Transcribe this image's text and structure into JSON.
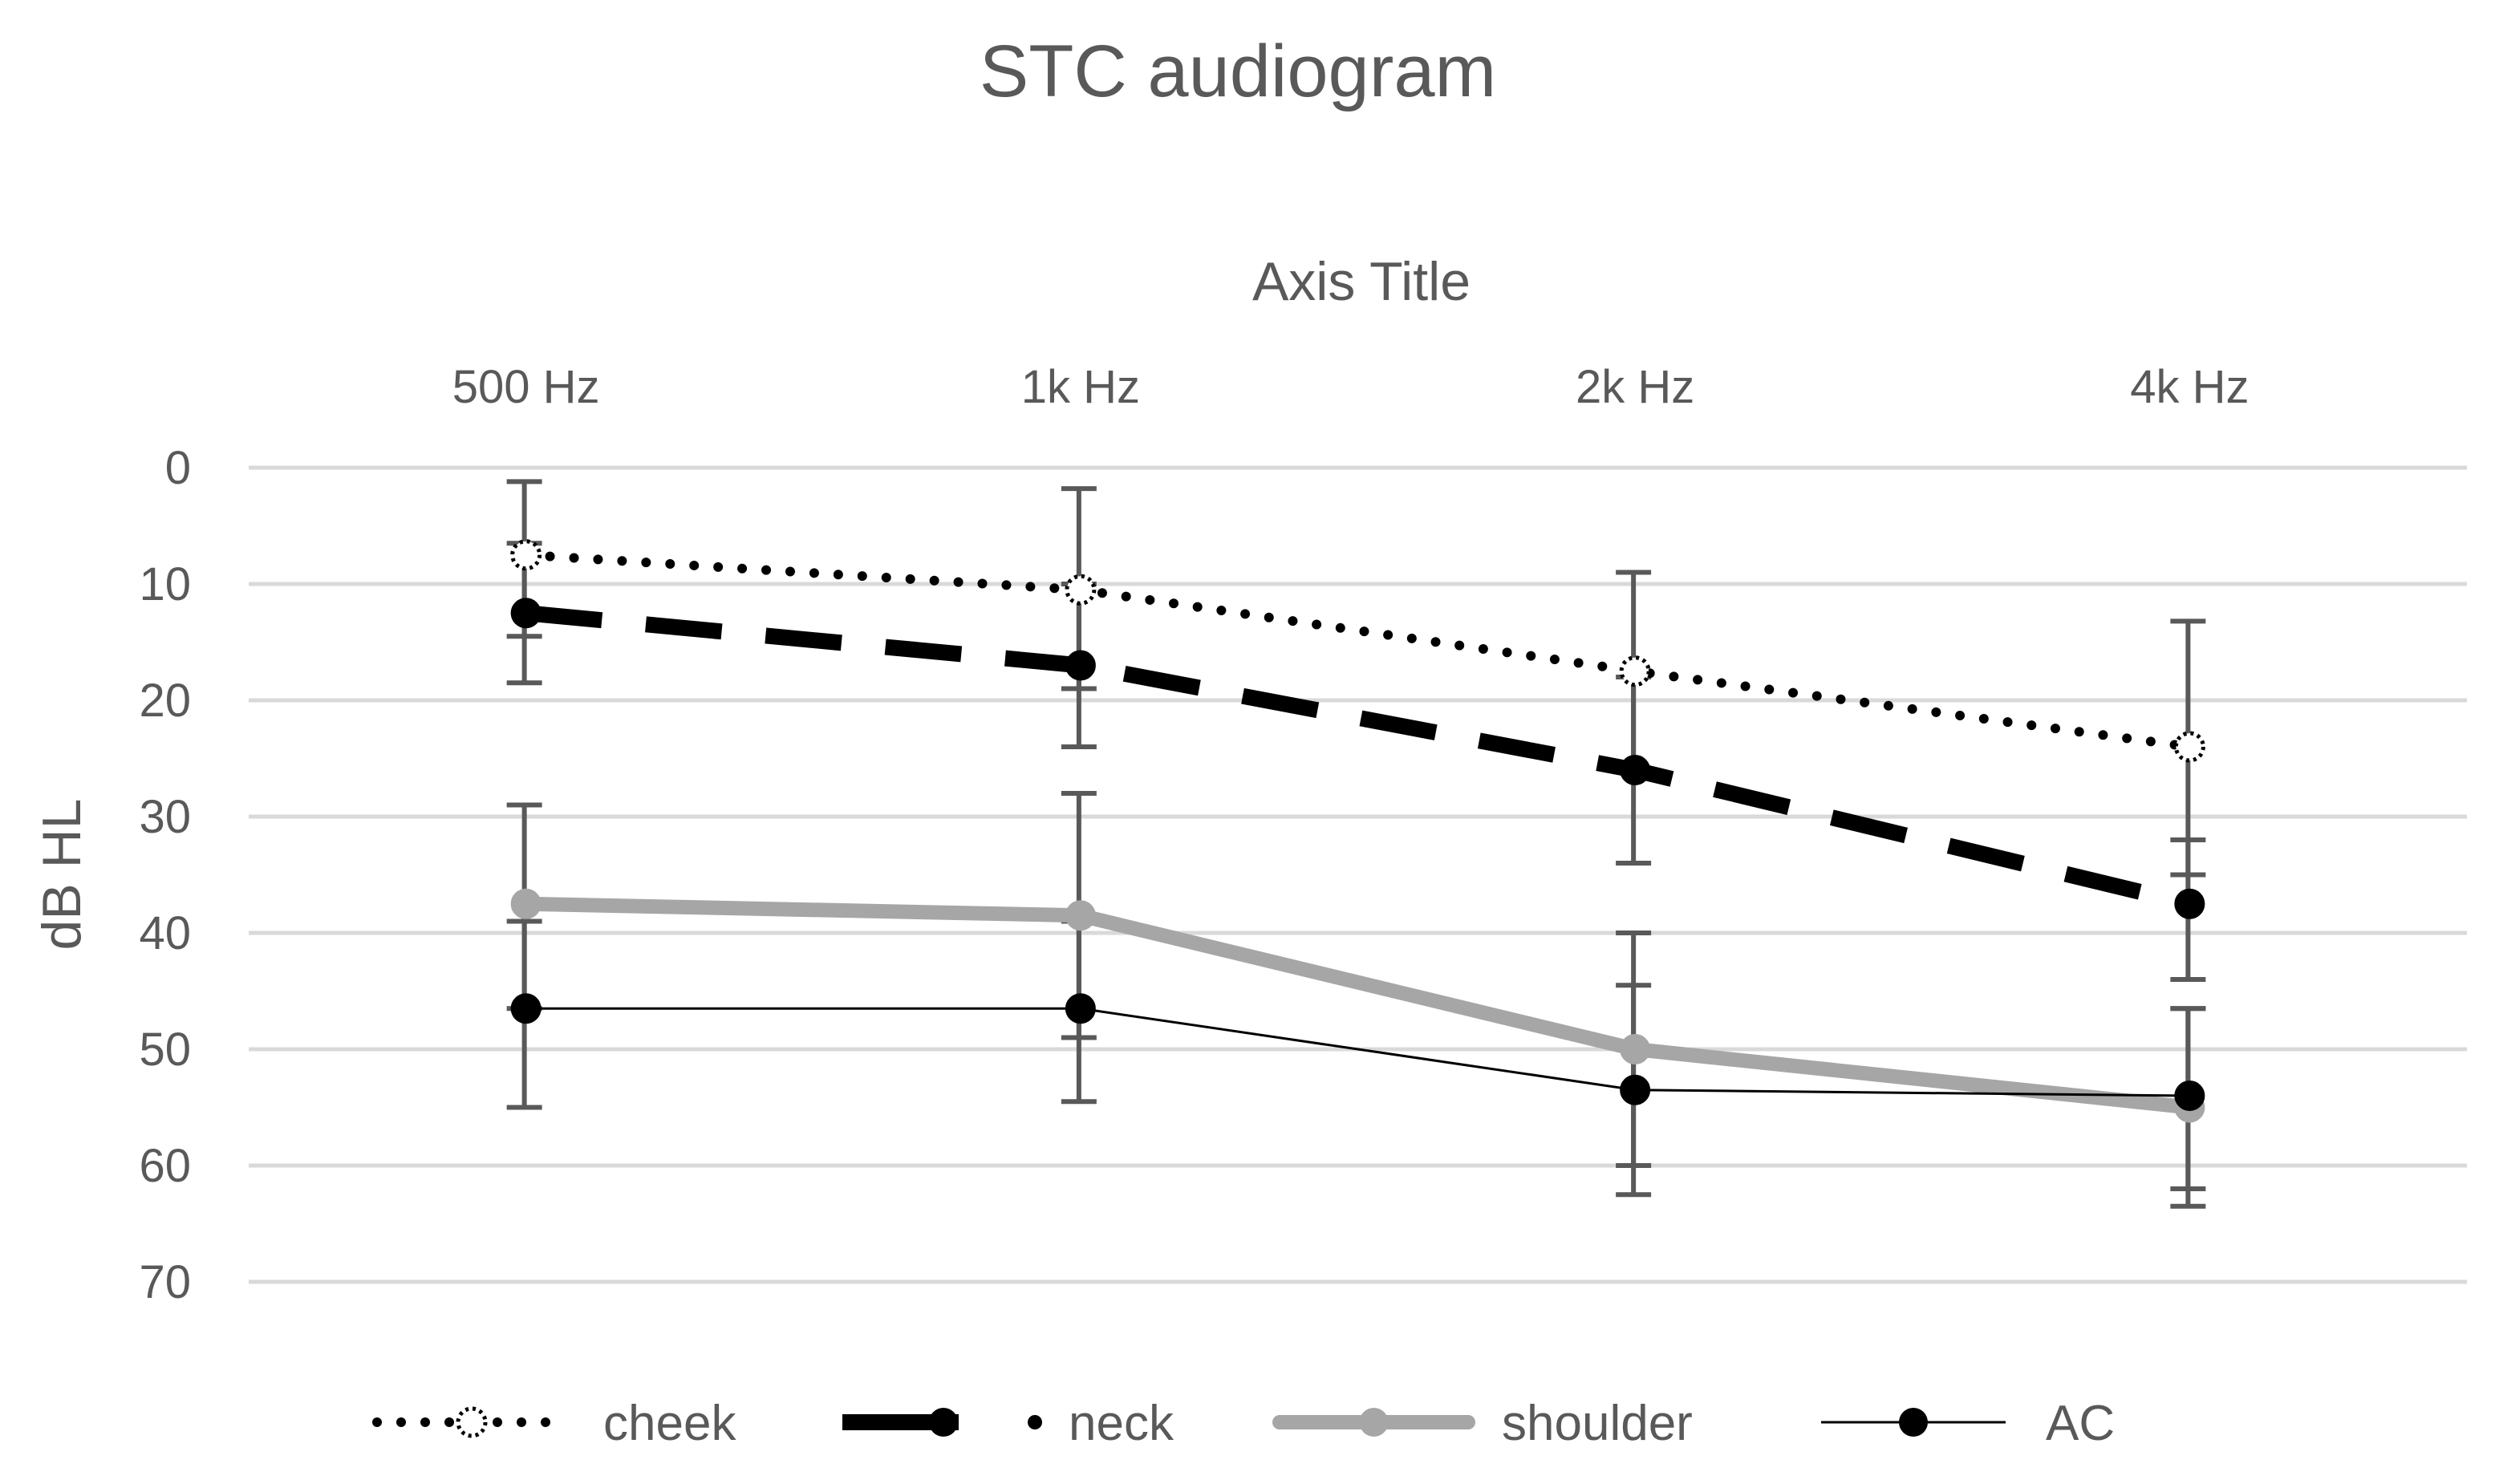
{
  "chart_data": {
    "type": "line",
    "title": "STC audiogram",
    "xlabel": "Axis Title",
    "ylabel": "dB HL",
    "categories": [
      "500 Hz",
      "1k Hz",
      "2k Hz",
      "4k Hz"
    ],
    "ylim": [
      0,
      70
    ],
    "yticks": [
      0,
      10,
      20,
      30,
      40,
      50,
      60,
      70
    ],
    "y_inverted": true,
    "x_axis_position": "top",
    "grid": true,
    "legend_position": "bottom",
    "series": [
      {
        "name": "cheek",
        "values": [
          7.5,
          10.5,
          17.5,
          24
        ],
        "error_low": [
          1.2,
          1.8,
          9.0,
          13.2
        ],
        "error_high": [
          14.5,
          19.0,
          26.0,
          35.0
        ],
        "line_style": "dotted",
        "color": "#000000",
        "marker": "open-dotted-circle"
      },
      {
        "name": "neck",
        "values": [
          12.5,
          17,
          26,
          37.5
        ],
        "error_low": [
          6.5,
          10.0,
          18.0,
          32.0
        ],
        "error_high": [
          18.5,
          24.0,
          34.0,
          44.0
        ],
        "line_style": "dashed",
        "color": "#000000",
        "marker": "filled-circle"
      },
      {
        "name": "shoulder",
        "values": [
          37.5,
          38.5,
          50.0,
          55.0
        ],
        "error_low": [
          29.0,
          28.0,
          40.0,
          46.5
        ],
        "error_high": [
          46.5,
          49.0,
          60.0,
          63.5
        ],
        "line_style": "solid-thick",
        "color": "#a6a6a6",
        "marker": "filled-circle"
      },
      {
        "name": "AC",
        "values": [
          46.5,
          46.5,
          53.5,
          54.0
        ],
        "error_low": [
          39.0,
          39.0,
          44.5,
          46.5
        ],
        "error_high": [
          55.0,
          54.5,
          62.5,
          62.0
        ],
        "line_style": "solid-thin",
        "color": "#000000",
        "marker": "filled-circle"
      }
    ]
  }
}
